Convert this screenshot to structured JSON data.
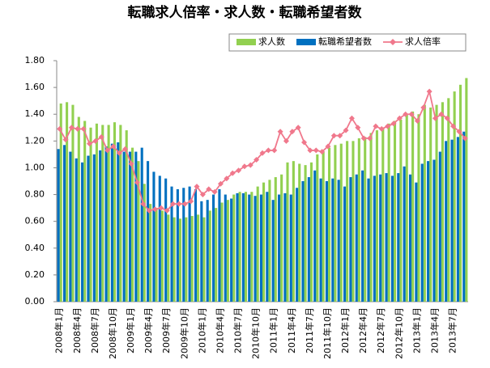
{
  "chart_data": {
    "type": "bar-line",
    "title": "転職求人倍率・求人数・転職希望者数",
    "categories": [
      "2008年1月",
      null,
      null,
      "2008年4月",
      null,
      null,
      "2008年7月",
      null,
      null,
      "2008年10月",
      null,
      null,
      "2009年1月",
      null,
      null,
      "2009年4月",
      null,
      null,
      "2009年7月",
      null,
      null,
      "2009年10月",
      null,
      null,
      "2010年1月",
      null,
      null,
      "2010年4月",
      null,
      null,
      "2010年7月",
      null,
      null,
      "2010年10月",
      null,
      null,
      "2011年1月",
      null,
      null,
      "2011年4月",
      null,
      null,
      "2011年7月",
      null,
      null,
      "2011年10月",
      null,
      null,
      "2012年1月",
      null,
      null,
      "2012年4月",
      null,
      null,
      "2012年7月",
      null,
      null,
      "2012年10月",
      null,
      null,
      "2013年1月",
      null,
      null,
      "2013年4月",
      null,
      null,
      "2013年7月",
      null,
      null
    ],
    "series": [
      {
        "name": "求人数",
        "kind": "bar",
        "color": "#92d050",
        "values": [
          1.48,
          1.49,
          1.47,
          1.38,
          1.35,
          1.3,
          1.33,
          1.32,
          1.32,
          1.34,
          1.32,
          1.28,
          1.15,
          1.05,
          0.88,
          0.73,
          0.7,
          0.68,
          0.65,
          0.63,
          0.62,
          0.63,
          0.64,
          0.65,
          0.63,
          0.68,
          0.7,
          0.74,
          0.76,
          0.8,
          0.82,
          0.82,
          0.82,
          0.86,
          0.89,
          0.91,
          0.93,
          0.95,
          1.04,
          1.05,
          1.03,
          1.02,
          1.04,
          1.1,
          1.12,
          1.15,
          1.17,
          1.18,
          1.2,
          1.2,
          1.22,
          1.23,
          1.26,
          1.28,
          1.3,
          1.33,
          1.35,
          1.36,
          1.4,
          1.42,
          1.4,
          1.47,
          1.45,
          1.47,
          1.49,
          1.52,
          1.57,
          1.62,
          1.67
        ]
      },
      {
        "name": "転職希望者数",
        "kind": "bar",
        "color": "#0070c0",
        "values": [
          1.14,
          1.17,
          1.12,
          1.07,
          1.04,
          1.09,
          1.1,
          1.13,
          1.16,
          1.18,
          1.19,
          1.12,
          1.12,
          1.12,
          1.15,
          1.05,
          0.97,
          0.94,
          0.92,
          0.86,
          0.84,
          0.85,
          0.86,
          0.84,
          0.75,
          0.76,
          0.8,
          0.84,
          0.8,
          0.77,
          0.81,
          0.81,
          0.8,
          0.79,
          0.8,
          0.82,
          0.76,
          0.8,
          0.81,
          0.8,
          0.85,
          0.9,
          0.93,
          0.98,
          0.92,
          0.9,
          0.92,
          0.91,
          0.86,
          0.93,
          0.95,
          0.98,
          0.92,
          0.94,
          0.95,
          0.96,
          0.94,
          0.96,
          1.01,
          0.95,
          0.89,
          1.03,
          1.05,
          1.06,
          1.12,
          1.2,
          1.21,
          1.23,
          1.27
        ]
      },
      {
        "name": "求人倍率",
        "kind": "line",
        "color": "#f0788c",
        "values": [
          1.29,
          1.21,
          1.3,
          1.29,
          1.29,
          1.18,
          1.2,
          1.23,
          1.13,
          1.16,
          1.11,
          1.14,
          1.03,
          0.89,
          0.73,
          0.68,
          0.69,
          0.7,
          0.68,
          0.73,
          0.73,
          0.73,
          0.75,
          0.86,
          0.8,
          0.84,
          0.82,
          0.88,
          0.92,
          0.96,
          0.98,
          1.01,
          1.02,
          1.06,
          1.11,
          1.13,
          1.13,
          1.27,
          1.2,
          1.27,
          1.3,
          1.19,
          1.13,
          1.13,
          1.12,
          1.16,
          1.24,
          1.24,
          1.28,
          1.37,
          1.3,
          1.22,
          1.22,
          1.31,
          1.29,
          1.31,
          1.33,
          1.37,
          1.4,
          1.4,
          1.35,
          1.45,
          1.57,
          1.37,
          1.4,
          1.37,
          1.31,
          1.27,
          1.22
        ]
      }
    ],
    "ylim": [
      0,
      1.8
    ],
    "yticks": [
      {
        "value": 0,
        "label": "0.00"
      },
      {
        "value": 0.2,
        "label": "0.20"
      },
      {
        "value": 0.4,
        "label": "0.40"
      },
      {
        "value": 0.6,
        "label": "0.60"
      },
      {
        "value": 0.8,
        "label": "0.80"
      },
      {
        "value": 1,
        "label": "1.00"
      },
      {
        "value": 1.2,
        "label": "1.20"
      },
      {
        "value": 1.4,
        "label": "1.40"
      },
      {
        "value": 1.6,
        "label": "1.60"
      },
      {
        "value": 1.8,
        "label": "1.80"
      }
    ],
    "legend": "top-right"
  }
}
